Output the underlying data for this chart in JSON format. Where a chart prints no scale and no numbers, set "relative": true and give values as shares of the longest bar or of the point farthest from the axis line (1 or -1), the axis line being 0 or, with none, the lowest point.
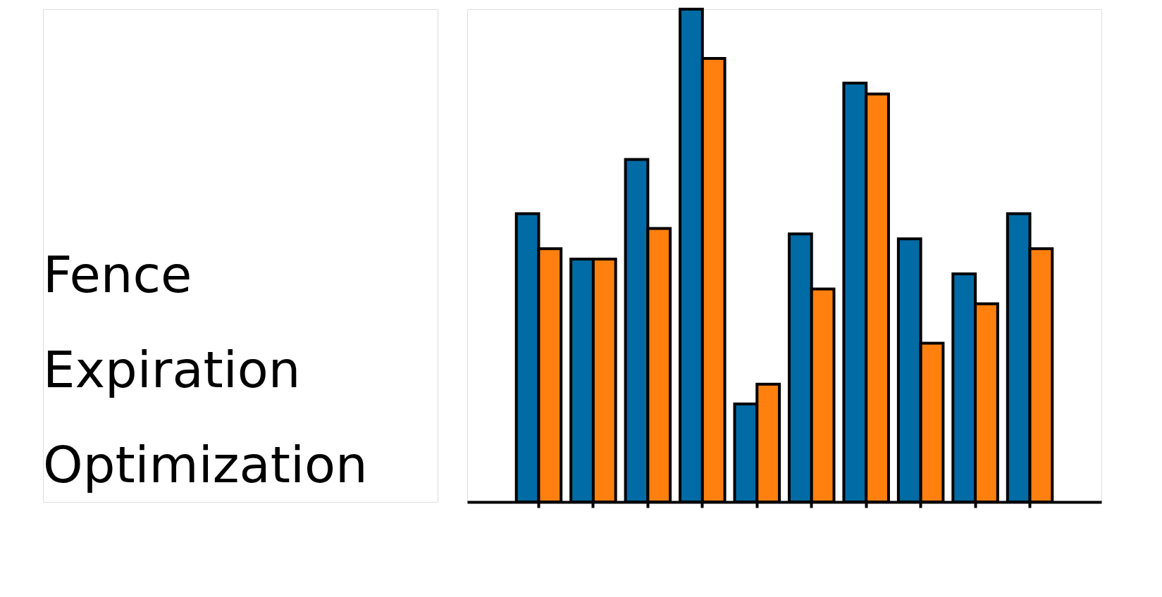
{
  "chart_data": {
    "type": "bar",
    "title": "Fence Expiration Optimization",
    "relative": true,
    "categories": [
      null,
      null,
      null,
      null,
      null,
      null,
      null,
      null,
      null,
      null
    ],
    "series": [
      {
        "color": "#006ba4",
        "values": [
          0.585,
          0.493,
          0.695,
          1.0,
          0.199,
          0.544,
          0.85,
          0.534,
          0.463,
          0.585
        ]
      },
      {
        "color": "#ff800e",
        "values": [
          0.514,
          0.493,
          0.555,
          0.9,
          0.239,
          0.432,
          0.828,
          0.322,
          0.402,
          0.514
        ]
      }
    ]
  }
}
